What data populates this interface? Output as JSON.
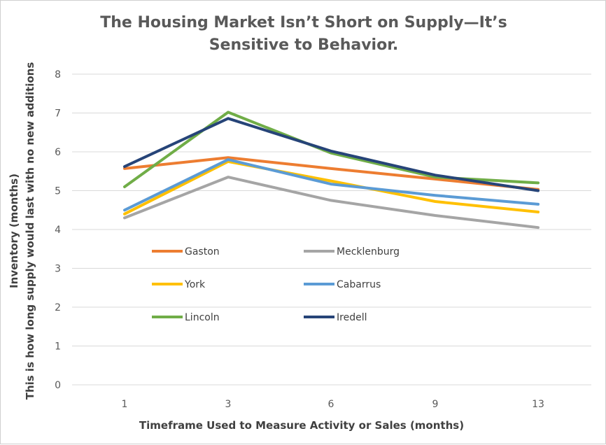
{
  "chart_data": {
    "type": "line",
    "title_line1": "The Housing Market Isn’t Short on Supply—It’s",
    "title_line2": "Sensitive to Behavior.",
    "xlabel": "Timeframe Used to Measure Activity or Sales (months)",
    "ylabel_line1": "Inventory (months)",
    "ylabel_line2": "This is how long supply would last with no new additions",
    "categories": [
      "1",
      "3",
      "6",
      "9",
      "13"
    ],
    "ylim": [
      0,
      8
    ],
    "yticks": [
      0,
      1,
      2,
      3,
      4,
      5,
      6,
      7,
      8
    ],
    "grid": true,
    "legend_position": "inside-left, two columns",
    "series": [
      {
        "name": "Gaston",
        "color": "#ED7D31",
        "values": [
          5.57,
          5.85,
          5.57,
          5.3,
          5.03
        ]
      },
      {
        "name": "Mecklenburg",
        "color": "#A5A5A5",
        "values": [
          4.3,
          5.35,
          4.75,
          4.36,
          4.05
        ]
      },
      {
        "name": "York",
        "color": "#FFC000",
        "values": [
          4.4,
          5.75,
          5.25,
          4.72,
          4.45
        ]
      },
      {
        "name": "Cabarrus",
        "color": "#5B9BD5",
        "values": [
          4.5,
          5.8,
          5.17,
          4.88,
          4.65
        ]
      },
      {
        "name": "Lincoln",
        "color": "#70AD47",
        "values": [
          5.1,
          7.02,
          5.97,
          5.35,
          5.2
        ]
      },
      {
        "name": "Iredell",
        "color": "#264478",
        "values": [
          5.62,
          6.86,
          6.02,
          5.4,
          5.0
        ]
      }
    ]
  }
}
